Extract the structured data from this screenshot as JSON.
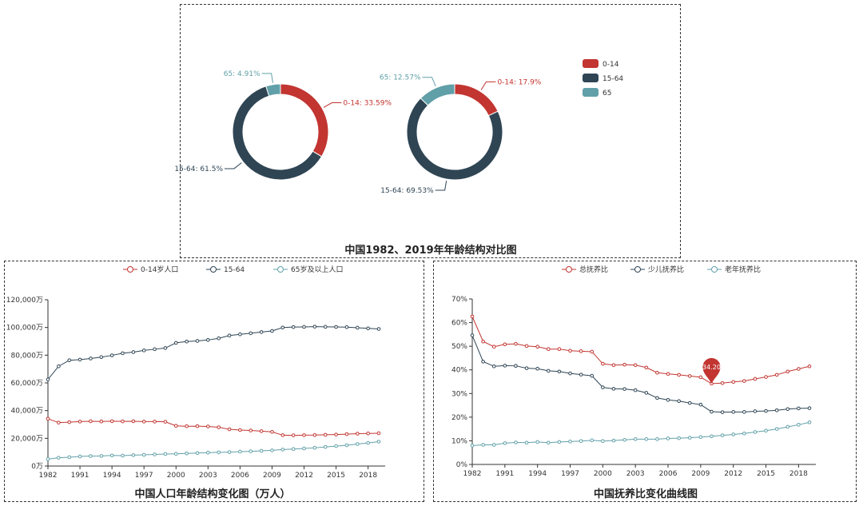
{
  "chart_data": [
    {
      "type": "pie",
      "title": "中国1982、2019年年龄结构对比图",
      "legend": [
        "0-14",
        "15-64",
        "65"
      ],
      "legend_position": "top-right",
      "colors": [
        "#c23531",
        "#2f4554",
        "#61a0a8"
      ],
      "pies": [
        {
          "year": "1982",
          "slices": [
            {
              "name": "0-14",
              "value": 33.59,
              "label": "0-14: 33.59%"
            },
            {
              "name": "15-64",
              "value": 61.5,
              "label": "15-64: 61.5%"
            },
            {
              "name": "65",
              "value": 4.91,
              "label": "65: 4.91%"
            }
          ]
        },
        {
          "year": "2019",
          "slices": [
            {
              "name": "0-14",
              "value": 17.9,
              "label": "0-14: 17.9%"
            },
            {
              "name": "15-64",
              "value": 69.53,
              "label": "15-64: 69.53%"
            },
            {
              "name": "65",
              "value": 12.57,
              "label": "65: 12.57%"
            }
          ]
        }
      ]
    },
    {
      "type": "line",
      "title": "中国人口年龄结构变化图（万人）",
      "legend_position": "top-center",
      "x": [
        "1982",
        "1987",
        "1990",
        "1991",
        "1992",
        "1993",
        "1994",
        "1995",
        "1996",
        "1997",
        "1998",
        "1999",
        "2000",
        "2001",
        "2002",
        "2003",
        "2004",
        "2005",
        "2006",
        "2007",
        "2008",
        "2009",
        "2010",
        "2011",
        "2012",
        "2013",
        "2014",
        "2015",
        "2016",
        "2017",
        "2018",
        "2019"
      ],
      "x_tick_labels": [
        "1982",
        "1991",
        "1994",
        "1997",
        "2000",
        "2003",
        "2006",
        "2009",
        "2012",
        "2015",
        "2018"
      ],
      "ylim": [
        0,
        120000
      ],
      "y_tick_labels": [
        "0万",
        "20,000万",
        "40,000万",
        "60,000万",
        "80,000万",
        "100,000万",
        "120,000万"
      ],
      "series": [
        {
          "name": "0-14岁人口",
          "color": "#c23531",
          "values": [
            34146,
            31347,
            31659,
            32095,
            32339,
            32177,
            32360,
            32218,
            32311,
            32093,
            32064,
            31950,
            29012,
            28716,
            28774,
            28559,
            27947,
            26504,
            25961,
            25660,
            25166,
            24659,
            22259,
            22164,
            22287,
            22329,
            22558,
            22715,
            23008,
            23348,
            23523,
            23689
          ]
        },
        {
          "name": "15-64",
          "color": "#2f4554",
          "values": [
            62517,
            71985,
            76306,
            76791,
            77614,
            78614,
            79868,
            81393,
            82245,
            83448,
            84338,
            85157,
            88910,
            89849,
            90302,
            90976,
            92184,
            94197,
            95068,
            95833,
            96680,
            97484,
            99938,
            100283,
            100403,
            100582,
            100469,
            100361,
            100260,
            99829,
            99357,
            98910
          ]
        },
        {
          "name": "65岁及以上人口",
          "color": "#61a0a8",
          "values": [
            4991,
            5968,
            6368,
            6938,
            7218,
            7289,
            7622,
            7510,
            7833,
            8085,
            8359,
            8679,
            8821,
            9062,
            9377,
            9692,
            9857,
            10055,
            10419,
            10636,
            10956,
            11307,
            11894,
            12288,
            12714,
            13161,
            13755,
            14386,
            15003,
            15831,
            16658,
            17603
          ]
        }
      ]
    },
    {
      "type": "line",
      "title": "中国抚养比变化曲线图",
      "legend_position": "top-center",
      "x": [
        "1982",
        "1987",
        "1990",
        "1991",
        "1992",
        "1993",
        "1994",
        "1995",
        "1996",
        "1997",
        "1998",
        "1999",
        "2000",
        "2001",
        "2002",
        "2003",
        "2004",
        "2005",
        "2006",
        "2007",
        "2008",
        "2009",
        "2010",
        "2011",
        "2012",
        "2013",
        "2014",
        "2015",
        "2016",
        "2017",
        "2018",
        "2019"
      ],
      "x_tick_labels": [
        "1982",
        "1991",
        "1994",
        "1997",
        "2000",
        "2003",
        "2006",
        "2009",
        "2012",
        "2015",
        "2018"
      ],
      "ylim": [
        0,
        70
      ],
      "y_tick_labels": [
        "0%",
        "10%",
        "20%",
        "30%",
        "40%",
        "50%",
        "60%",
        "70%"
      ],
      "series": [
        {
          "name": "总抚养比",
          "color": "#c23531",
          "values": [
            62.6,
            52.0,
            49.8,
            50.8,
            51.0,
            50.1,
            49.8,
            48.8,
            48.8,
            48.1,
            47.9,
            47.7,
            42.6,
            42.0,
            42.2,
            42.0,
            41.0,
            38.8,
            38.3,
            37.9,
            37.4,
            36.9,
            34.2,
            34.4,
            34.9,
            35.3,
            36.2,
            37.0,
            37.9,
            39.3,
            40.4,
            41.5
          ]
        },
        {
          "name": "少儿抚养比",
          "color": "#2f4554",
          "values": [
            54.6,
            43.5,
            41.5,
            41.8,
            41.7,
            40.7,
            40.5,
            39.6,
            39.3,
            38.5,
            38.0,
            37.5,
            32.6,
            32.0,
            31.9,
            31.4,
            30.3,
            28.1,
            27.3,
            26.8,
            26.0,
            25.3,
            22.3,
            22.1,
            22.2,
            22.2,
            22.5,
            22.6,
            22.9,
            23.4,
            23.7,
            23.8
          ]
        },
        {
          "name": "老年抚养比",
          "color": "#61a0a8",
          "values": [
            8.0,
            8.3,
            8.3,
            9.0,
            9.3,
            9.2,
            9.5,
            9.2,
            9.5,
            9.7,
            9.9,
            10.2,
            9.9,
            10.1,
            10.4,
            10.7,
            10.7,
            10.7,
            11.0,
            11.1,
            11.3,
            11.6,
            11.9,
            12.3,
            12.7,
            13.1,
            13.7,
            14.3,
            15.0,
            15.9,
            16.8,
            17.8
          ]
        }
      ],
      "marker": {
        "series": "总抚养比",
        "x": "2010",
        "label": "34.20"
      }
    }
  ]
}
